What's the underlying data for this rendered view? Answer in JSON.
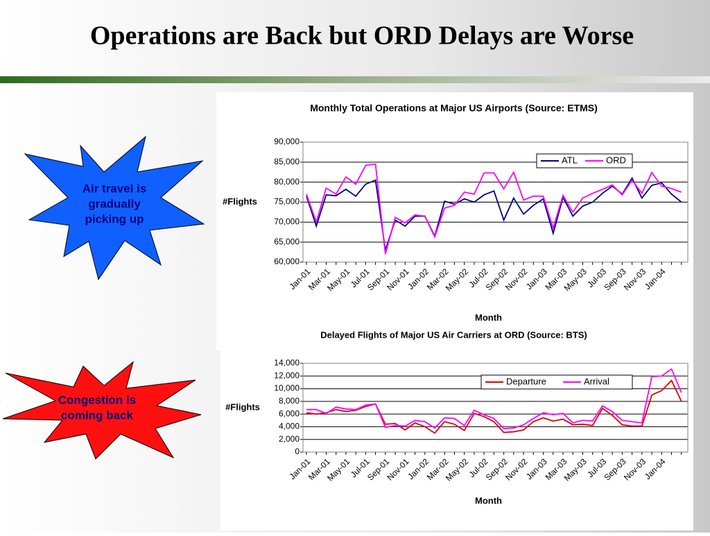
{
  "slide_title": "Operations are Back but ORD Delays are Worse",
  "callouts": [
    [
      "Air travel is",
      "gradually",
      "picking up"
    ],
    [
      "Congestion is",
      "coming back"
    ]
  ],
  "chart_data": [
    {
      "type": "line",
      "title": "Monthly Total Operations at Major US Airports (Source: ETMS)",
      "xlabel": "Month",
      "ylabel": "#Flights",
      "categories": [
        "Jan-01",
        null,
        "Mar-01",
        null,
        "May-01",
        null,
        "Jul-01",
        null,
        "Sep-01",
        null,
        "Nov-01",
        null,
        "Jan-02",
        null,
        "Mar-02",
        null,
        "May-02",
        null,
        "Jul-02",
        null,
        "Sep-02",
        null,
        "Nov-02",
        null,
        "Jan-03",
        null,
        "Mar-03",
        null,
        "May-03",
        null,
        "Jul-03",
        null,
        "Sep-03",
        null,
        "Nov-03",
        null,
        "Jan-04",
        null,
        null
      ],
      "series": [
        {
          "name": "ATL",
          "color": "#000080",
          "values": [
            76500,
            69000,
            76800,
            76600,
            78200,
            76500,
            79500,
            80500,
            63000,
            70500,
            69000,
            71500,
            71500,
            66500,
            75200,
            74500,
            75800,
            75000,
            76800,
            77800,
            70500,
            76000,
            72000,
            74200,
            75800,
            67200,
            76200,
            71500,
            74000,
            75000,
            77200,
            79000,
            77000,
            81000,
            76000,
            79200,
            79800,
            77000,
            75000
          ]
        },
        {
          "name": "ORD",
          "color": "#ff00ff",
          "values": [
            77000,
            70000,
            78500,
            77000,
            81300,
            79500,
            84200,
            84500,
            62000,
            71200,
            69800,
            71800,
            71500,
            66300,
            73500,
            74200,
            77500,
            77000,
            82300,
            82300,
            78300,
            82500,
            75500,
            76500,
            76500,
            68500,
            76700,
            72500,
            76000,
            77200,
            78200,
            79300,
            76800,
            80500,
            77200,
            82400,
            79000,
            78400,
            77500
          ]
        }
      ],
      "ylim": [
        60000,
        90000
      ],
      "yticks": [
        {
          "value": 60000,
          "label": "60,000"
        },
        {
          "value": 65000,
          "label": "65,000"
        },
        {
          "value": 70000,
          "label": "70,000"
        },
        {
          "value": 75000,
          "label": "75,000"
        },
        {
          "value": 80000,
          "label": "80,000"
        },
        {
          "value": 85000,
          "label": "85,000"
        },
        {
          "value": 90000,
          "label": "90,000"
        }
      ],
      "grid": true,
      "legend": "upper right"
    },
    {
      "type": "line",
      "title": "Delayed Flights of Major US Air Carriers at ORD (Source: BTS)",
      "xlabel": "Month",
      "ylabel": "#Flights",
      "categories": [
        "Jan-01",
        null,
        "Mar-01",
        null,
        "May-01",
        null,
        "Jul-01",
        null,
        "Sep-01",
        null,
        "Nov-01",
        null,
        "Jan-02",
        null,
        "Mar-02",
        null,
        "May-02",
        null,
        "Jul-02",
        null,
        "Sep-02",
        null,
        "Nov-02",
        null,
        "Jan-03",
        null,
        "Mar-03",
        null,
        "May-03",
        null,
        "Jul-03",
        null,
        "Sep-03",
        null,
        "Nov-03",
        null,
        "Jan-04",
        null,
        null
      ],
      "series": [
        {
          "name": "Departure",
          "color": "#e00000",
          "values": [
            6200,
            6000,
            6200,
            6700,
            6400,
            6600,
            7200,
            7600,
            4400,
            4500,
            3500,
            4600,
            4000,
            3000,
            4800,
            4400,
            3400,
            6100,
            5600,
            4800,
            3100,
            3200,
            3500,
            4800,
            5400,
            4900,
            5200,
            4300,
            4400,
            4200,
            6900,
            5800,
            4300,
            4100,
            4100,
            9000,
            9700,
            11300,
            8000
          ]
        },
        {
          "name": "Arrival",
          "color": "#ff00ff",
          "values": [
            6700,
            6700,
            6100,
            7100,
            6800,
            6700,
            7400,
            7600,
            3900,
            4200,
            4100,
            5000,
            4800,
            3800,
            5400,
            5300,
            4200,
            6600,
            5900,
            5300,
            3700,
            3800,
            4300,
            5300,
            6200,
            5900,
            6100,
            4600,
            5000,
            4900,
            7300,
            6400,
            5000,
            4800,
            4600,
            11900,
            12000,
            13100,
            9400
          ]
        }
      ],
      "ylim": [
        0,
        14000
      ],
      "yticks": [
        0,
        {
          "value": 2000,
          "label": "2,000"
        },
        {
          "value": 4000,
          "label": "4,000"
        },
        {
          "value": 6000,
          "label": "6,000"
        },
        {
          "value": 8000,
          "label": "8,000"
        },
        {
          "value": 10000,
          "label": "10,000"
        },
        {
          "value": 12000,
          "label": "12,000"
        },
        {
          "value": 14000,
          "label": "14,000"
        }
      ],
      "grid": true,
      "legend": "upper right"
    }
  ]
}
